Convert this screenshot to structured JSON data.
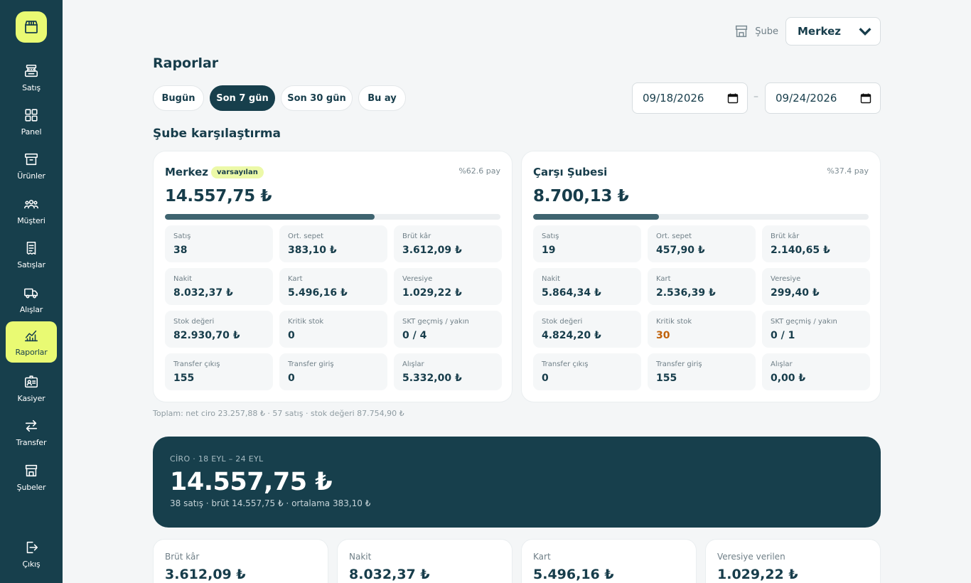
{
  "sidebar": {
    "items": [
      {
        "label": "Satış",
        "icon": "cash-register-icon"
      },
      {
        "label": "Panel",
        "icon": "dashboard-grid-icon"
      },
      {
        "label": "Ürünler",
        "icon": "archive-box-icon"
      },
      {
        "label": "Müşteri",
        "icon": "users-icon"
      },
      {
        "label": "Satışlar",
        "icon": "receipt-icon"
      },
      {
        "label": "Alışlar",
        "icon": "truck-icon"
      },
      {
        "label": "Raporlar",
        "icon": "chart-icon",
        "active": true
      },
      {
        "label": "Kasiyer",
        "icon": "id-badge-icon"
      },
      {
        "label": "Transfer",
        "icon": "arrows-exchange-icon"
      },
      {
        "label": "Şubeler",
        "icon": "store-icon"
      }
    ],
    "logout": "Çıkış"
  },
  "header": {
    "branch_label": "Şube",
    "branch_value": "Merkez"
  },
  "page": {
    "title": "Raporlar",
    "ranges": [
      "Bugün",
      "Son 7 gün",
      "Son 30 gün",
      "Bu ay"
    ],
    "active_range": "Son 7 gün",
    "date_from": "09/18/2026",
    "date_to": "09/24/2026",
    "date_separator": "–"
  },
  "compare": {
    "title": "Şube karşılaştırma",
    "branches": [
      {
        "name": "Merkez",
        "badge": "varsayılan",
        "share": "%62.6 pay",
        "share_fraction": 0.626,
        "total": "14.557,75 ₺",
        "metrics": [
          {
            "label": "Satış",
            "value": "38"
          },
          {
            "label": "Ort. sepet",
            "value": "383,10 ₺"
          },
          {
            "label": "Brüt kâr",
            "value": "3.612,09 ₺"
          },
          {
            "label": "Nakit",
            "value": "8.032,37 ₺"
          },
          {
            "label": "Kart",
            "value": "5.496,16 ₺"
          },
          {
            "label": "Veresiye",
            "value": "1.029,22 ₺"
          },
          {
            "label": "Stok değeri",
            "value": "82.930,70 ₺"
          },
          {
            "label": "Kritik stok",
            "value": "0"
          },
          {
            "label": "SKT geçmiş / yakın",
            "value": "0 / 4"
          },
          {
            "label": "Transfer çıkış",
            "value": "155"
          },
          {
            "label": "Transfer giriş",
            "value": "0"
          },
          {
            "label": "Alışlar",
            "value": "5.332,00 ₺"
          }
        ]
      },
      {
        "name": "Çarşı Şubesi",
        "badge": "",
        "share": "%37.4 pay",
        "share_fraction": 0.374,
        "total": "8.700,13 ₺",
        "metrics": [
          {
            "label": "Satış",
            "value": "19"
          },
          {
            "label": "Ort. sepet",
            "value": "457,90 ₺"
          },
          {
            "label": "Brüt kâr",
            "value": "2.140,65 ₺"
          },
          {
            "label": "Nakit",
            "value": "5.864,34 ₺"
          },
          {
            "label": "Kart",
            "value": "2.536,39 ₺"
          },
          {
            "label": "Veresiye",
            "value": "299,40 ₺"
          },
          {
            "label": "Stok değeri",
            "value": "4.824,20 ₺"
          },
          {
            "label": "Kritik stok",
            "value": "30",
            "warn": true
          },
          {
            "label": "SKT geçmiş / yakın",
            "value": "0 / 1"
          },
          {
            "label": "Transfer çıkış",
            "value": "0"
          },
          {
            "label": "Transfer giriş",
            "value": "155"
          },
          {
            "label": "Alışlar",
            "value": "0,00 ₺"
          }
        ]
      }
    ],
    "total_note": "Toplam: net ciro 23.257,88 ₺ · 57 satış · stok değeri 87.754,90 ₺"
  },
  "hero": {
    "caption": "CİRO · 18 EYL – 24 EYL",
    "value": "14.557,75 ₺",
    "sub": "38 satış · brüt 14.557,75 ₺ · ortalama 383,10 ₺"
  },
  "summary": [
    {
      "label": "Brüt kâr",
      "value": "3.612,09 ₺"
    },
    {
      "label": "Nakit",
      "value": "8.032,37 ₺"
    },
    {
      "label": "Kart",
      "value": "5.496,16 ₺"
    },
    {
      "label": "Veresiye verilen",
      "value": "1.029,22 ₺"
    }
  ],
  "colors": {
    "sidebar": "#173f4c",
    "accent": "#e9fa73",
    "warning": "#c0620b"
  }
}
